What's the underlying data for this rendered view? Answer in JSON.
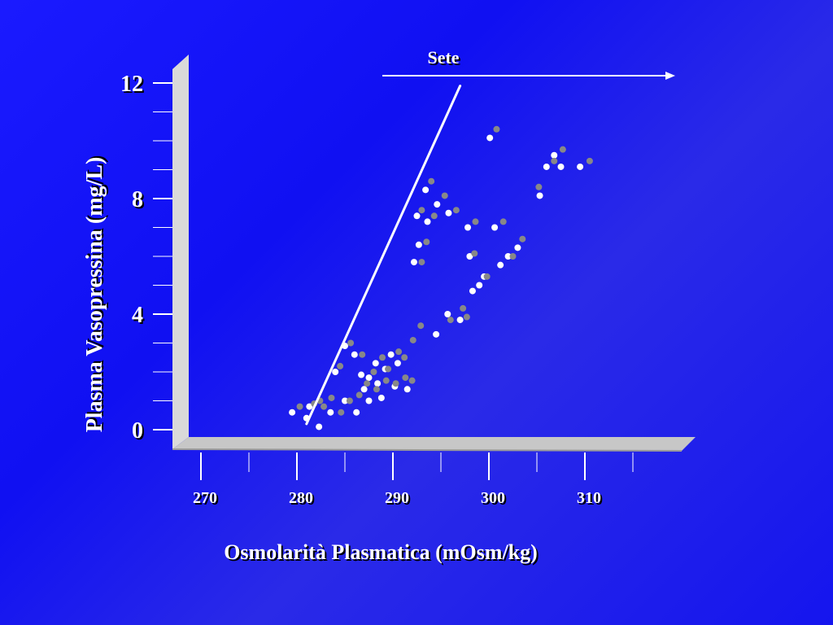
{
  "chart_data": {
    "type": "scatter",
    "xlabel": "Osmolarità Plasmatica (mOsm/kg)",
    "ylabel": "Plasma Vasopressina (mg/L)",
    "xlim": [
      270,
      315
    ],
    "ylim": [
      0,
      12
    ],
    "x_ticks": [
      "270",
      "280",
      "290",
      "300",
      "310"
    ],
    "y_ticks": [
      "0",
      "4",
      "8",
      "12"
    ],
    "annotation": "Sete",
    "regression_line": {
      "x": [
        281,
        297
      ],
      "y": [
        0.2,
        11.9
      ]
    },
    "series": [
      {
        "color": "#ffffff",
        "points": [
          [
            279.5,
            0.6
          ],
          [
            281,
            0.4
          ],
          [
            282.3,
            0.1
          ],
          [
            283.5,
            0.6
          ],
          [
            285,
            1.0
          ],
          [
            286.2,
            0.6
          ],
          [
            287.5,
            1.0
          ],
          [
            288.8,
            1.1
          ],
          [
            281.3,
            0.8
          ],
          [
            284,
            2.0
          ],
          [
            285,
            2.9
          ],
          [
            286,
            2.6
          ],
          [
            286.7,
            1.9
          ],
          [
            287,
            1.4
          ],
          [
            287.5,
            1.8
          ],
          [
            288.2,
            2.3
          ],
          [
            288.4,
            1.6
          ],
          [
            289.2,
            2.1
          ],
          [
            289.8,
            2.6
          ],
          [
            290.2,
            1.5
          ],
          [
            290.5,
            2.3
          ],
          [
            291.5,
            1.4
          ],
          [
            292.2,
            5.8
          ],
          [
            292.5,
            7.4
          ],
          [
            292.7,
            6.4
          ],
          [
            293.4,
            8.3
          ],
          [
            293.6,
            7.2
          ],
          [
            294.6,
            7.8
          ],
          [
            295.8,
            7.5
          ],
          [
            294.5,
            3.3
          ],
          [
            295.7,
            4.0
          ],
          [
            297,
            3.8
          ],
          [
            298,
            6.0
          ],
          [
            297.8,
            7.0
          ],
          [
            298.3,
            4.8
          ],
          [
            299,
            5.0
          ],
          [
            299.5,
            5.3
          ],
          [
            300.1,
            10.1
          ],
          [
            300.6,
            7.0
          ],
          [
            301.2,
            5.7
          ],
          [
            302,
            6.0
          ],
          [
            303,
            6.3
          ],
          [
            305.3,
            8.1
          ],
          [
            306,
            9.1
          ],
          [
            306.8,
            9.5
          ],
          [
            307.5,
            9.1
          ],
          [
            309.5,
            9.1
          ]
        ]
      },
      {
        "color": "#888888",
        "points": [
          [
            280.3,
            0.8
          ],
          [
            281.8,
            0.9
          ],
          [
            282.8,
            0.8
          ],
          [
            283.6,
            1.1
          ],
          [
            284.6,
            0.6
          ],
          [
            285.5,
            1.0
          ],
          [
            286.5,
            1.2
          ],
          [
            287.3,
            1.6
          ],
          [
            288.3,
            1.4
          ],
          [
            289.3,
            1.7
          ],
          [
            290.3,
            1.6
          ],
          [
            291.3,
            1.8
          ],
          [
            292,
            1.7
          ],
          [
            282.4,
            1.0
          ],
          [
            284.5,
            2.2
          ],
          [
            285.6,
            3.0
          ],
          [
            286.8,
            2.6
          ],
          [
            288,
            2.0
          ],
          [
            288.9,
            2.5
          ],
          [
            289.5,
            2.1
          ],
          [
            290.6,
            2.7
          ],
          [
            291.2,
            2.5
          ],
          [
            292.1,
            3.1
          ],
          [
            292.9,
            3.6
          ],
          [
            293,
            5.8
          ],
          [
            293,
            7.6
          ],
          [
            293.5,
            6.5
          ],
          [
            294,
            8.6
          ],
          [
            294.3,
            7.4
          ],
          [
            295.4,
            8.1
          ],
          [
            296.6,
            7.6
          ],
          [
            296,
            3.8
          ],
          [
            297.3,
            4.2
          ],
          [
            297.7,
            3.9
          ],
          [
            298.5,
            6.1
          ],
          [
            298.6,
            7.2
          ],
          [
            299.8,
            5.3
          ],
          [
            300.8,
            10.4
          ],
          [
            301.5,
            7.2
          ],
          [
            302.5,
            6.0
          ],
          [
            303.5,
            6.6
          ],
          [
            305.2,
            8.4
          ],
          [
            306.8,
            9.3
          ],
          [
            307.7,
            9.7
          ],
          [
            310.5,
            9.3
          ]
        ]
      }
    ]
  }
}
